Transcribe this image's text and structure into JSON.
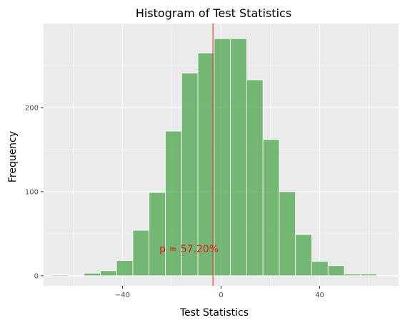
{
  "chart_data": {
    "type": "bar",
    "title": "Histogram of Test Statistics",
    "xlabel": "Test Statistics",
    "ylabel": "Frequency",
    "xlim": [
      -72,
      72
    ],
    "ylim": [
      -12,
      300
    ],
    "xticks": [
      -40,
      0,
      40
    ],
    "xtick_labels": [
      "−40",
      "0",
      "40"
    ],
    "yticks": [
      0,
      100,
      200
    ],
    "ytick_labels": [
      "0",
      "100",
      "200"
    ],
    "grid": true,
    "bin_width": 6.6,
    "bins": [
      {
        "x0": -68.8,
        "x1": -62.2,
        "count": 1
      },
      {
        "x0": -62.2,
        "x1": -55.6,
        "count": 0
      },
      {
        "x0": -55.6,
        "x1": -49.0,
        "count": 3
      },
      {
        "x0": -49.0,
        "x1": -42.4,
        "count": 6
      },
      {
        "x0": -42.4,
        "x1": -35.8,
        "count": 18
      },
      {
        "x0": -35.8,
        "x1": -29.2,
        "count": 54
      },
      {
        "x0": -29.2,
        "x1": -22.6,
        "count": 99
      },
      {
        "x0": -22.6,
        "x1": -16.0,
        "count": 172
      },
      {
        "x0": -16.0,
        "x1": -9.4,
        "count": 241
      },
      {
        "x0": -9.4,
        "x1": -2.8,
        "count": 265
      },
      {
        "x0": -2.8,
        "x1": 3.8,
        "count": 282
      },
      {
        "x0": 3.8,
        "x1": 10.4,
        "count": 282
      },
      {
        "x0": 10.4,
        "x1": 17.0,
        "count": 233
      },
      {
        "x0": 17.0,
        "x1": 23.6,
        "count": 162
      },
      {
        "x0": 23.6,
        "x1": 30.2,
        "count": 100
      },
      {
        "x0": 30.2,
        "x1": 36.8,
        "count": 49
      },
      {
        "x0": 36.8,
        "x1": 43.4,
        "count": 17
      },
      {
        "x0": 43.4,
        "x1": 50.0,
        "count": 12
      },
      {
        "x0": 50.0,
        "x1": 56.6,
        "count": 2
      },
      {
        "x0": 56.6,
        "x1": 63.2,
        "count": 2
      }
    ],
    "reference_line": {
      "x": -3.3,
      "color": "#e41a1c"
    },
    "annotation": {
      "text": "p = 57.20%",
      "x": -13,
      "y": 28,
      "color": "#e41a1c"
    },
    "bar_color": "#4ca64c",
    "panel_color": "#ebebeb",
    "grid_color": "#ffffff"
  }
}
